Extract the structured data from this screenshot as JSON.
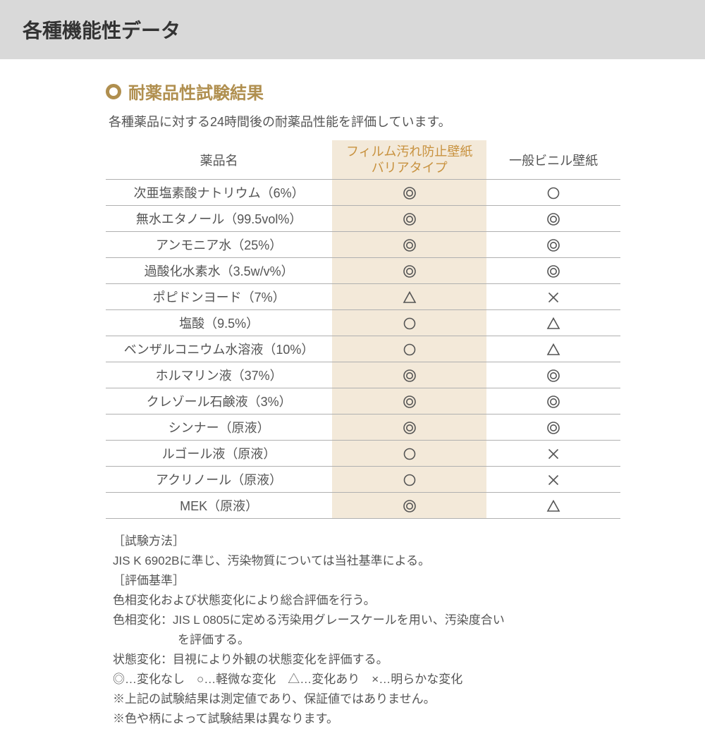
{
  "colors": {
    "header_bg": "#d9d9d9",
    "accent": "#b08f4f",
    "accent_text": "#c8923f",
    "highlight_bg": "#f3e9d9",
    "border": "#b0b0b0",
    "body_text": "#555555",
    "title_text": "#333333"
  },
  "header": {
    "title": "各種機能性データ"
  },
  "section": {
    "title": "耐薬品性試験結果",
    "subtitle": "各種薬品に対する24時間後の耐薬品性能を評価しています。"
  },
  "table": {
    "columns": {
      "name": "薬品名",
      "a_line1": "フィルム汚れ防止壁紙",
      "a_line2": "バリアタイプ",
      "b": "一般ビニル壁紙"
    },
    "symbols": {
      "double_circle": "double-circle",
      "circle": "circle",
      "triangle": "triangle",
      "cross": "cross"
    },
    "rows": [
      {
        "name": "次亜塩素酸ナトリウム（6%）",
        "a": "double-circle",
        "b": "circle"
      },
      {
        "name": "無水エタノール（99.5vol%）",
        "a": "double-circle",
        "b": "double-circle"
      },
      {
        "name": "アンモニア水（25%）",
        "a": "double-circle",
        "b": "double-circle"
      },
      {
        "name": "過酸化水素水（3.5w/v%）",
        "a": "double-circle",
        "b": "double-circle"
      },
      {
        "name": "ポピドンヨード（7%）",
        "a": "triangle",
        "b": "cross"
      },
      {
        "name": "塩酸（9.5%）",
        "a": "circle",
        "b": "triangle"
      },
      {
        "name": "ベンザルコニウム水溶液（10%）",
        "a": "circle",
        "b": "triangle"
      },
      {
        "name": "ホルマリン液（37%）",
        "a": "double-circle",
        "b": "double-circle"
      },
      {
        "name": "クレゾール石鹸液（3%）",
        "a": "double-circle",
        "b": "double-circle"
      },
      {
        "name": "シンナー（原液）",
        "a": "double-circle",
        "b": "double-circle"
      },
      {
        "name": "ルゴール液（原液）",
        "a": "circle",
        "b": "cross"
      },
      {
        "name": "アクリノール（原液）",
        "a": "circle",
        "b": "cross"
      },
      {
        "name": "MEK（原液）",
        "a": "double-circle",
        "b": "triangle"
      }
    ]
  },
  "notes": {
    "l1": "［試験方法］",
    "l2": "JIS K 6902Bに準じ、汚染物質については当社基準による。",
    "l3": "［評価基準］",
    "l4": "色相変化および状態変化により総合評価を行う。",
    "l5": "色相変化：JIS L 0805に定める汚染用グレースケールを用い、汚染度合い",
    "l5b": "を評価する。",
    "l6": "状態変化：目視により外観の状態変化を評価する。",
    "l7": "◎…変化なし　○…軽微な変化　△…変化あり　×…明らかな変化",
    "l8": "※上記の試験結果は測定値であり、保証値ではありません。",
    "l9": "※色や柄によって試験結果は異なります。"
  }
}
